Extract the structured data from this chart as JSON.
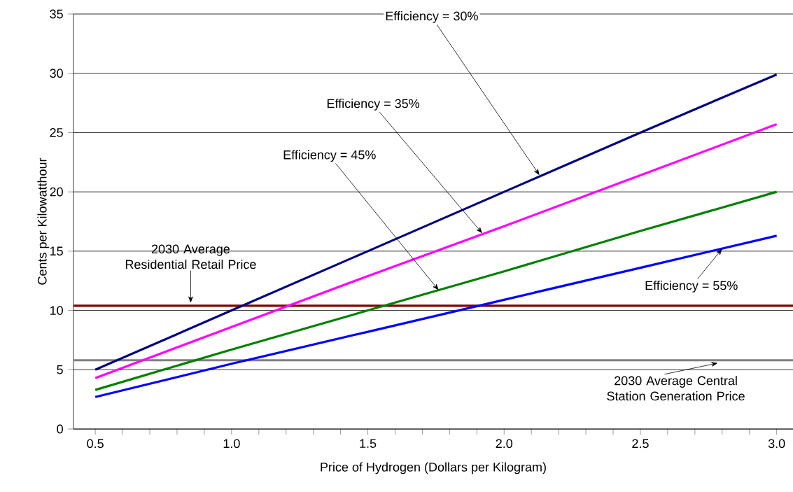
{
  "chart_data": {
    "type": "line",
    "xlabel": "Price of Hydrogen (Dollars per Kilogram)",
    "ylabel": "Cents per Kilowatthour",
    "x": [
      0.5,
      1.0,
      1.5,
      2.0,
      2.5,
      3.0
    ],
    "series": [
      {
        "color": "#000080",
        "values": [
          5.0,
          10.0,
          15.0,
          20.0,
          25.0,
          29.9
        ]
      },
      {
        "color": "#ff00ff",
        "values": [
          4.3,
          8.6,
          12.9,
          17.1,
          21.4,
          25.7
        ]
      },
      {
        "color": "#008000",
        "values": [
          3.3,
          6.7,
          10.0,
          13.3,
          16.7,
          20.0
        ]
      },
      {
        "color": "#0000ff",
        "values": [
          2.7,
          5.5,
          8.2,
          10.9,
          13.6,
          16.3
        ]
      }
    ],
    "xlim": [
      0.42,
      3.06
    ],
    "ylim": [
      0,
      35
    ],
    "xticks": [
      {
        "value": 0.5,
        "label": "0.5"
      },
      {
        "value": 0.6,
        "label": null
      },
      {
        "value": 0.7,
        "label": null
      },
      {
        "value": 0.8,
        "label": null
      },
      {
        "value": 0.9,
        "label": null
      },
      {
        "value": 1.0,
        "label": "1.0"
      },
      {
        "value": 1.1,
        "label": null
      },
      {
        "value": 1.2,
        "label": null
      },
      {
        "value": 1.3,
        "label": null
      },
      {
        "value": 1.4,
        "label": null
      },
      {
        "value": 1.5,
        "label": "1.5"
      },
      {
        "value": 1.6,
        "label": null
      },
      {
        "value": 1.7,
        "label": null
      },
      {
        "value": 1.8,
        "label": null
      },
      {
        "value": 1.9,
        "label": null
      },
      {
        "value": 2.0,
        "label": "2.0"
      },
      {
        "value": 2.1,
        "label": null
      },
      {
        "value": 2.2,
        "label": null
      },
      {
        "value": 2.3,
        "label": null
      },
      {
        "value": 2.4,
        "label": null
      },
      {
        "value": 2.5,
        "label": "2.5"
      },
      {
        "value": 2.6,
        "label": null
      },
      {
        "value": 2.7,
        "label": null
      },
      {
        "value": 2.8,
        "label": null
      },
      {
        "value": 2.9,
        "label": null
      },
      {
        "value": 3.0,
        "label": "3.0"
      }
    ],
    "yticks": [
      0,
      5,
      10,
      15,
      20,
      25,
      30,
      35
    ],
    "grid": "y",
    "marker": "none",
    "line_style": "solid",
    "ref_lines": [
      {
        "axis": "y",
        "value": 10.4,
        "label": "2030 Average Residential Retail Price",
        "color": "#800000"
      },
      {
        "axis": "y",
        "value": 5.8,
        "label": "2030 Average Central Station Generation Price",
        "color": "#808080"
      }
    ],
    "annotations": [
      {
        "text": "Efficiency = 30%",
        "x": 2.13,
        "y": 21.4
      },
      {
        "text": "Efficiency = 35%",
        "x": 1.92,
        "y": 16.5
      },
      {
        "text": "Efficiency = 45%",
        "x": 1.76,
        "y": 11.7
      },
      {
        "text": "Efficiency = 55%",
        "x": 2.8,
        "y": 15.2
      }
    ]
  }
}
